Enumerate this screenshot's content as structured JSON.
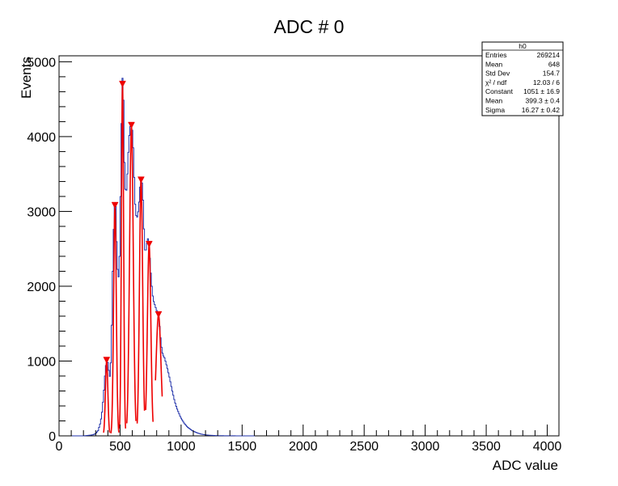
{
  "chart_data": {
    "type": "histogram",
    "title": "ADC # 0",
    "xlabel": "ADC value",
    "ylabel": "Events",
    "xlim": [
      0,
      4096
    ],
    "ylim": [
      0,
      5080
    ],
    "x_ticks": [
      0,
      500,
      1000,
      1500,
      2000,
      2500,
      3000,
      3500,
      4000
    ],
    "y_ticks": [
      0,
      1000,
      2000,
      3000,
      4000,
      5000
    ],
    "grid": false,
    "colors": {
      "histogram": "#2233aa",
      "fit": "#ee0000",
      "axis": "#000000",
      "stats_border": "#000000"
    },
    "histogram": {
      "bin_width": 8,
      "points": [
        [
          100,
          0
        ],
        [
          200,
          0
        ],
        [
          250,
          8
        ],
        [
          280,
          15
        ],
        [
          300,
          30
        ],
        [
          320,
          70
        ],
        [
          340,
          180
        ],
        [
          355,
          350
        ],
        [
          370,
          650
        ],
        [
          380,
          900
        ],
        [
          390,
          1000
        ],
        [
          400,
          980
        ],
        [
          410,
          850
        ],
        [
          420,
          760
        ],
        [
          430,
          1300
        ],
        [
          440,
          2200
        ],
        [
          450,
          2900
        ],
        [
          458,
          3150
        ],
        [
          465,
          3050
        ],
        [
          475,
          2400
        ],
        [
          485,
          2050
        ],
        [
          495,
          2300
        ],
        [
          505,
          3300
        ],
        [
          513,
          4300
        ],
        [
          520,
          4780
        ],
        [
          527,
          4600
        ],
        [
          535,
          3700
        ],
        [
          545,
          3250
        ],
        [
          555,
          3300
        ],
        [
          565,
          3700
        ],
        [
          575,
          4000
        ],
        [
          585,
          4150
        ],
        [
          595,
          4170
        ],
        [
          605,
          4000
        ],
        [
          615,
          3500
        ],
        [
          625,
          3050
        ],
        [
          635,
          2900
        ],
        [
          645,
          2950
        ],
        [
          655,
          3100
        ],
        [
          665,
          3350
        ],
        [
          675,
          3460
        ],
        [
          685,
          3300
        ],
        [
          695,
          2800
        ],
        [
          705,
          2450
        ],
        [
          715,
          2500
        ],
        [
          725,
          2650
        ],
        [
          735,
          2600
        ],
        [
          745,
          2350
        ],
        [
          755,
          2100
        ],
        [
          765,
          1900
        ],
        [
          775,
          1800
        ],
        [
          785,
          1750
        ],
        [
          795,
          1700
        ],
        [
          805,
          1650
        ],
        [
          815,
          1580
        ],
        [
          825,
          1450
        ],
        [
          835,
          1250
        ],
        [
          845,
          1120
        ],
        [
          855,
          1070
        ],
        [
          865,
          1040
        ],
        [
          875,
          980
        ],
        [
          885,
          920
        ],
        [
          895,
          850
        ],
        [
          905,
          780
        ],
        [
          915,
          700
        ],
        [
          925,
          620
        ],
        [
          935,
          550
        ],
        [
          945,
          480
        ],
        [
          955,
          420
        ],
        [
          965,
          370
        ],
        [
          975,
          330
        ],
        [
          985,
          290
        ],
        [
          995,
          250
        ],
        [
          1010,
          210
        ],
        [
          1025,
          170
        ],
        [
          1040,
          140
        ],
        [
          1055,
          115
        ],
        [
          1070,
          95
        ],
        [
          1085,
          78
        ],
        [
          1100,
          62
        ],
        [
          1120,
          48
        ],
        [
          1140,
          36
        ],
        [
          1160,
          26
        ],
        [
          1180,
          19
        ],
        [
          1200,
          14
        ],
        [
          1230,
          9
        ],
        [
          1260,
          6
        ],
        [
          1300,
          3
        ],
        [
          1350,
          2
        ],
        [
          1420,
          1
        ],
        [
          1500,
          0
        ],
        [
          1600,
          0
        ]
      ]
    },
    "fits": [
      {
        "x_range": [
          365,
          415
        ],
        "mean": 390,
        "sigma": 10,
        "constant": 1000
      },
      {
        "x_range": [
          425,
          490
        ],
        "mean": 458,
        "sigma": 11,
        "constant": 3050
      },
      {
        "x_range": [
          495,
          545
        ],
        "mean": 520,
        "sigma": 9,
        "constant": 4680
      },
      {
        "x_range": [
          555,
          630
        ],
        "mean": 593,
        "sigma": 15,
        "constant": 4150
      },
      {
        "x_range": [
          640,
          700
        ],
        "mean": 672,
        "sigma": 13,
        "constant": 3420
      },
      {
        "x_range": [
          710,
          770
        ],
        "mean": 738,
        "sigma": 14,
        "constant": 2560
      },
      {
        "x_range": [
          790,
          845
        ],
        "mean": 815,
        "sigma": 20,
        "constant": 1620
      }
    ],
    "markers": [
      {
        "x": 390,
        "y": 1010
      },
      {
        "x": 458,
        "y": 3080
      },
      {
        "x": 520,
        "y": 4700
      },
      {
        "x": 593,
        "y": 4150
      },
      {
        "x": 672,
        "y": 3420
      },
      {
        "x": 738,
        "y": 2560
      },
      {
        "x": 815,
        "y": 1620
      }
    ],
    "stats_box": {
      "name": "h0",
      "rows": [
        {
          "label": "Entries",
          "value": "269214"
        },
        {
          "label": "Mean",
          "value": "648"
        },
        {
          "label": "Std Dev",
          "value": "154.7"
        },
        {
          "label": "χ² / ndf",
          "value": "12.03 / 6"
        },
        {
          "label": "Constant",
          "value": "1051 ± 16.9"
        },
        {
          "label": "Mean",
          "value": "399.3 ± 0.4"
        },
        {
          "label": "Sigma",
          "value": "16.27 ± 0.42"
        }
      ]
    }
  }
}
